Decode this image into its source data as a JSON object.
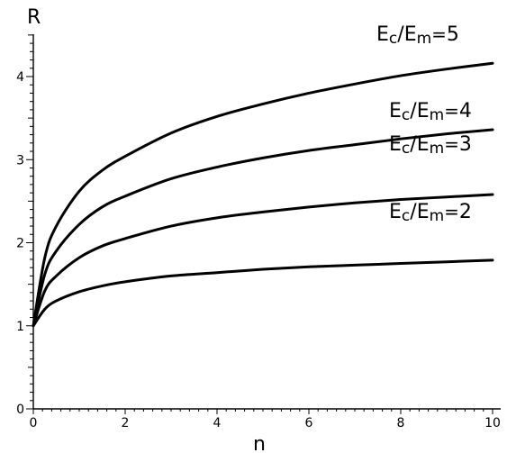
{
  "chart_data": {
    "type": "line",
    "xlabel": "n",
    "ylabel": "R",
    "xlim": [
      0,
      10
    ],
    "ylim": [
      0,
      4.5
    ],
    "x_ticks": [
      "0",
      "2",
      "4",
      "6",
      "8",
      "10"
    ],
    "y_ticks": [
      "0",
      "1",
      "2",
      "3",
      "4"
    ],
    "grid": false,
    "series": [
      {
        "name": "Ec/Em=2",
        "label_parts": {
          "E1": "E",
          "s1": "c",
          "slash": "/",
          "E2": "E",
          "s2": "m",
          "eq": "=",
          "val": "2"
        },
        "x": [
          0,
          0.25,
          0.5,
          1,
          1.5,
          2,
          3,
          4,
          5,
          6,
          7,
          8,
          9,
          10
        ],
        "y": [
          1,
          1.2,
          1.3,
          1.41,
          1.48,
          1.53,
          1.6,
          1.64,
          1.68,
          1.71,
          1.73,
          1.75,
          1.77,
          1.79
        ]
      },
      {
        "name": "Ec/Em=3",
        "label_parts": {
          "E1": "E",
          "s1": "c",
          "slash": "/",
          "E2": "E",
          "s2": "m",
          "eq": "=",
          "val": "3"
        },
        "x": [
          0,
          0.25,
          0.5,
          1,
          1.5,
          2,
          3,
          4,
          5,
          6,
          7,
          8,
          9,
          10
        ],
        "y": [
          1,
          1.42,
          1.6,
          1.82,
          1.96,
          2.05,
          2.2,
          2.3,
          2.37,
          2.43,
          2.48,
          2.52,
          2.55,
          2.58
        ]
      },
      {
        "name": "Ec/Em=4",
        "label_parts": {
          "E1": "E",
          "s1": "c",
          "slash": "/",
          "E2": "E",
          "s2": "m",
          "eq": "=",
          "val": "4"
        },
        "x": [
          0,
          0.25,
          0.5,
          1,
          1.5,
          2,
          3,
          4,
          5,
          6,
          7,
          8,
          9,
          10
        ],
        "y": [
          1,
          1.62,
          1.9,
          2.22,
          2.43,
          2.56,
          2.77,
          2.91,
          3.02,
          3.11,
          3.18,
          3.25,
          3.31,
          3.36
        ]
      },
      {
        "name": "Ec/Em=5",
        "label_parts": {
          "E1": "E",
          "s1": "c",
          "slash": "/",
          "E2": "E",
          "s2": "m",
          "eq": "=",
          "val": "5"
        },
        "x": [
          0,
          0.25,
          0.5,
          1,
          1.5,
          2,
          3,
          4,
          5,
          6,
          7,
          8,
          9,
          10
        ],
        "y": [
          1,
          1.82,
          2.2,
          2.62,
          2.87,
          3.04,
          3.32,
          3.52,
          3.67,
          3.8,
          3.91,
          4.01,
          4.09,
          4.16
        ]
      }
    ]
  }
}
